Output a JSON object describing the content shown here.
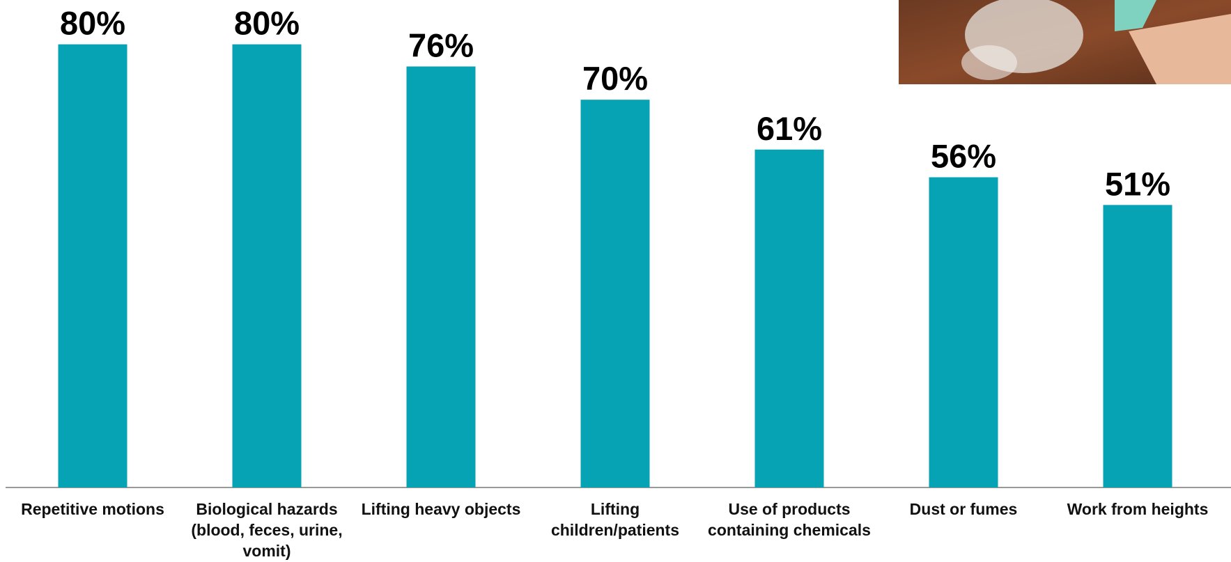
{
  "chart_data": {
    "type": "bar",
    "categories": [
      "Repetitive motions",
      "Biological hazards (blood, feces, urine, vomit)",
      "Lifting heavy objects",
      "Lifting children/patients",
      "Use of products containing chemicals",
      "Dust or fumes",
      "Work from heights"
    ],
    "values": [
      80,
      80,
      76,
      70,
      61,
      56,
      51
    ],
    "value_labels": [
      "80%",
      "80%",
      "76%",
      "70%",
      "61%",
      "56%",
      "51%"
    ],
    "color": "#06a3b4",
    "ylim": [
      0,
      88
    ]
  }
}
